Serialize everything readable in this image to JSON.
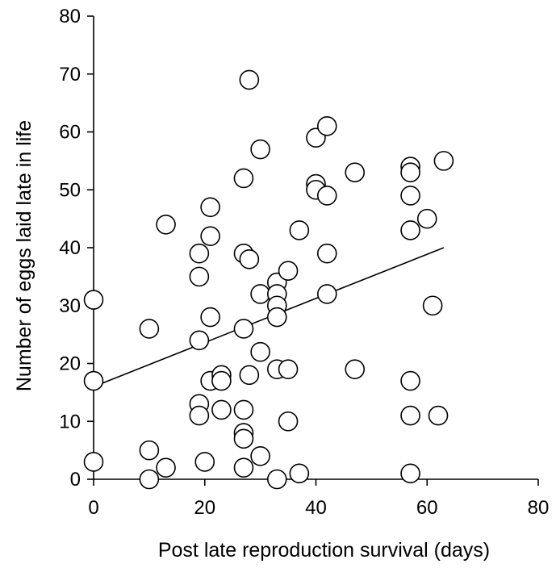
{
  "chart_data": {
    "type": "scatter",
    "title": "",
    "xlabel": "Post late reproduction survival (days)",
    "ylabel": "Number of eggs laid late in life",
    "xlim": [
      0,
      80
    ],
    "ylim": [
      0,
      80
    ],
    "xticks": [
      0,
      20,
      40,
      60,
      80
    ],
    "yticks": [
      0,
      10,
      20,
      30,
      40,
      50,
      60,
      70,
      80
    ],
    "grid": false,
    "marker": "open-circle",
    "points": [
      [
        0,
        31
      ],
      [
        0,
        17
      ],
      [
        0,
        3
      ],
      [
        10,
        26
      ],
      [
        10,
        5
      ],
      [
        10,
        0
      ],
      [
        13,
        44
      ],
      [
        13,
        2
      ],
      [
        19,
        39
      ],
      [
        19,
        35
      ],
      [
        19,
        24
      ],
      [
        19,
        13
      ],
      [
        19,
        11
      ],
      [
        20,
        3
      ],
      [
        21,
        47
      ],
      [
        21,
        42
      ],
      [
        21,
        28
      ],
      [
        21,
        17
      ],
      [
        23,
        18
      ],
      [
        23,
        17
      ],
      [
        23,
        12
      ],
      [
        27,
        52
      ],
      [
        27,
        39
      ],
      [
        27,
        26
      ],
      [
        27,
        12
      ],
      [
        27,
        8
      ],
      [
        27,
        7
      ],
      [
        27,
        2
      ],
      [
        28,
        69
      ],
      [
        28,
        38
      ],
      [
        28,
        18
      ],
      [
        30,
        57
      ],
      [
        30,
        32
      ],
      [
        30,
        22
      ],
      [
        30,
        4
      ],
      [
        33,
        34
      ],
      [
        33,
        32
      ],
      [
        33,
        30
      ],
      [
        33,
        28
      ],
      [
        33,
        19
      ],
      [
        33,
        0
      ],
      [
        35,
        36
      ],
      [
        35,
        19
      ],
      [
        35,
        10
      ],
      [
        37,
        43
      ],
      [
        37,
        1
      ],
      [
        40,
        59
      ],
      [
        40,
        51
      ],
      [
        40,
        50
      ],
      [
        42,
        61
      ],
      [
        42,
        49
      ],
      [
        42,
        39
      ],
      [
        42,
        32
      ],
      [
        47,
        53
      ],
      [
        47,
        19
      ],
      [
        57,
        54
      ],
      [
        57,
        53
      ],
      [
        57,
        49
      ],
      [
        57,
        43
      ],
      [
        57,
        17
      ],
      [
        57,
        11
      ],
      [
        57,
        1
      ],
      [
        60,
        45
      ],
      [
        61,
        30
      ],
      [
        62,
        11
      ],
      [
        63,
        55
      ]
    ],
    "trendline": {
      "x": [
        0,
        63
      ],
      "y": [
        16,
        40
      ]
    }
  }
}
